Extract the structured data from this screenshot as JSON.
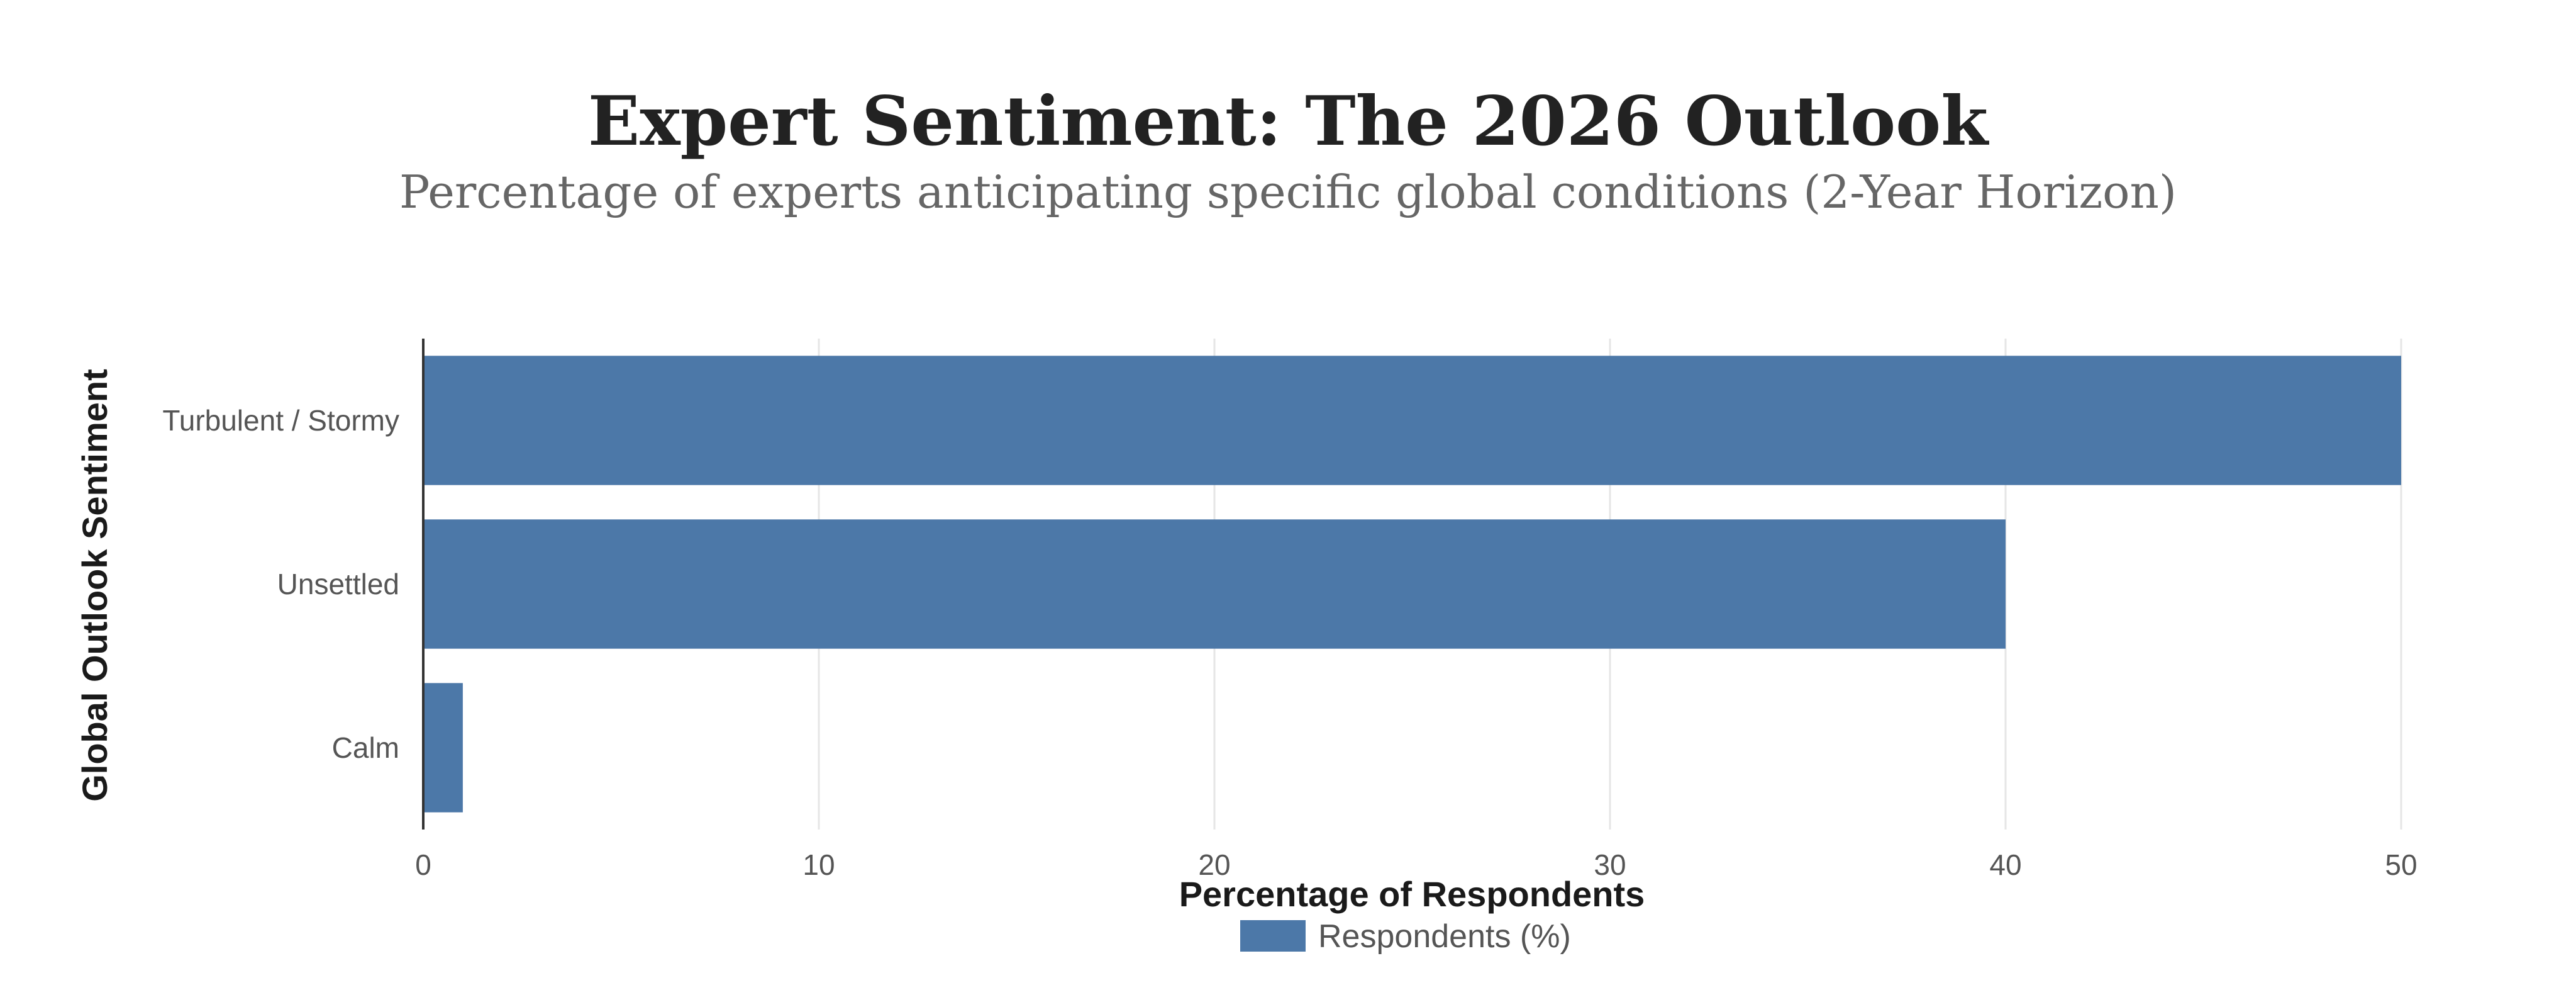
{
  "chart_data": {
    "type": "bar",
    "orientation": "horizontal",
    "title": "Expert Sentiment: The 2026 Outlook",
    "subtitle": "Percentage of experts anticipating specific global conditions (2-Year Horizon)",
    "categories": [
      "Turbulent / Stormy",
      "Unsettled",
      "Calm"
    ],
    "series": [
      {
        "name": "Respondents (%)",
        "values": [
          50,
          40,
          1
        ],
        "color": "#4c78a8"
      }
    ],
    "xlabel": "Percentage of Respondents",
    "ylabel": "Global Outlook Sentiment",
    "xlim": [
      0,
      50
    ],
    "xticks": [
      0,
      10,
      20,
      30,
      40,
      50
    ],
    "grid": true,
    "legend_position": "bottom-center"
  },
  "colors": {
    "bar": "#4c78a8",
    "grid": "#e6e6e6",
    "axis": "#333333"
  }
}
